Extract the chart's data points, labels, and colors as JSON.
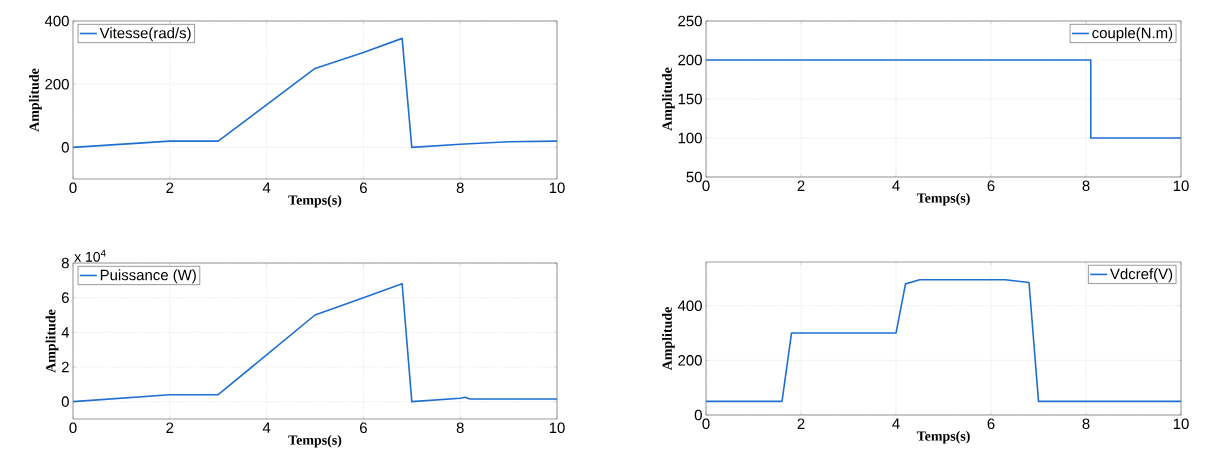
{
  "chart_data": [
    {
      "type": "line",
      "xlabel": "Temps(s)",
      "ylabel": "Amplitude",
      "xlim": [
        0,
        10
      ],
      "xticks": [
        0,
        2,
        4,
        6,
        8,
        10
      ],
      "ylim": [
        -100,
        400
      ],
      "yticks": [
        0,
        200,
        400
      ],
      "grid": true,
      "legend": "top left",
      "marker": "none",
      "line_style": "solid",
      "x": [
        0,
        2,
        3,
        5,
        6,
        6.8,
        7,
        8,
        9,
        10
      ],
      "series": [
        {
          "name": "Vitesse(rad/s)",
          "color": "#1f6fd0",
          "values": [
            0,
            20,
            20,
            250,
            300,
            345,
            0,
            10,
            18,
            20
          ]
        }
      ]
    },
    {
      "type": "line",
      "xlabel": "Temps(s)",
      "ylabel": "Amplitude",
      "xlim": [
        0,
        10
      ],
      "xticks": [
        0,
        2,
        4,
        6,
        8,
        10
      ],
      "ylim": [
        50,
        250
      ],
      "yticks": [
        50,
        100,
        150,
        200,
        250
      ],
      "grid": true,
      "legend": "top right",
      "marker": "none",
      "line_style": "solid",
      "x": [
        0,
        8.1,
        8.1,
        10
      ],
      "series": [
        {
          "name": "couple(N.m)",
          "color": "#1f6fd0",
          "values": [
            200,
            200,
            100,
            100
          ]
        }
      ]
    },
    {
      "type": "line",
      "xlabel": "Temps(s)",
      "ylabel": "Amplitude",
      "annotations": [
        "x 10$^{4}$"
      ],
      "xlim": [
        0,
        10
      ],
      "xticks": [
        0,
        2,
        4,
        6,
        8,
        10
      ],
      "ylim": [
        -1,
        8
      ],
      "yticks": [
        0,
        2,
        4,
        6,
        8
      ],
      "grid": true,
      "legend": "top left",
      "marker": "none",
      "line_style": "solid",
      "x": [
        0,
        2,
        3,
        4,
        5,
        6,
        6.8,
        7,
        8,
        8.1,
        8.2,
        10
      ],
      "series": [
        {
          "name": "Puissance (W)",
          "color": "#1f6fd0",
          "values": [
            0,
            0.4,
            0.4,
            2.7,
            5,
            6,
            6.8,
            0,
            0.2,
            0.25,
            0.15,
            0.15
          ]
        }
      ]
    },
    {
      "type": "line",
      "xlabel": "Temps(s)",
      "ylabel": "Amplitude",
      "xlim": [
        0,
        10
      ],
      "xticks": [
        0,
        2,
        4,
        6,
        8,
        10
      ],
      "ylim": [
        0,
        560
      ],
      "yticks": [
        0,
        200,
        400
      ],
      "grid": true,
      "legend": "top right",
      "marker": "none",
      "line_style": "solid",
      "x": [
        0,
        1.6,
        1.8,
        4,
        4.2,
        4.5,
        6.3,
        6.8,
        7,
        10
      ],
      "series": [
        {
          "name": "Vdcref(V)",
          "color": "#1f6fd0",
          "values": [
            50,
            50,
            300,
            300,
            480,
            495,
            495,
            485,
            50,
            50
          ]
        }
      ]
    }
  ]
}
